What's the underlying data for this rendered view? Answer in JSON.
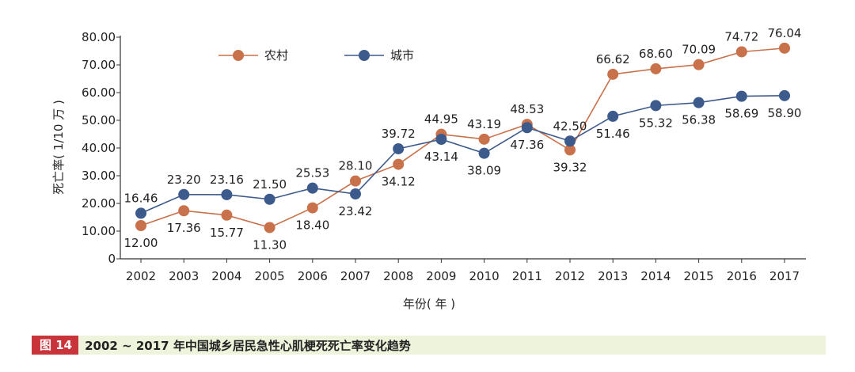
{
  "chart_data": {
    "type": "line",
    "categories": [
      "2002",
      "2003",
      "2004",
      "2005",
      "2006",
      "2007",
      "2008",
      "2009",
      "2010",
      "2011",
      "2012",
      "2013",
      "2014",
      "2015",
      "2016",
      "2017"
    ],
    "series": [
      {
        "name": "农村",
        "color": "#c8714a",
        "values": [
          12.0,
          17.36,
          15.77,
          11.3,
          18.4,
          28.1,
          34.12,
          44.95,
          43.19,
          48.53,
          39.32,
          66.62,
          68.6,
          70.09,
          74.72,
          76.04
        ],
        "labels": [
          "12.00",
          "17.36",
          "15.77",
          "11.30",
          "18.40",
          "28.10",
          "34.12",
          "44.95",
          "43.19",
          "48.53",
          "39.32",
          "66.62",
          "68.60",
          "70.09",
          "74.72",
          "76.04"
        ]
      },
      {
        "name": "城市",
        "color": "#3d5a8c",
        "values": [
          16.46,
          23.2,
          23.16,
          21.5,
          25.53,
          23.42,
          39.72,
          43.14,
          38.09,
          47.36,
          42.5,
          51.46,
          55.32,
          56.38,
          58.69,
          58.9
        ],
        "labels": [
          "16.46",
          "23.20",
          "23.16",
          "21.50",
          "25.53",
          "23.42",
          "39.72",
          "43.14",
          "38.09",
          "47.36",
          "42.50",
          "51.46",
          "55.32",
          "56.38",
          "58.69",
          "58.90"
        ]
      }
    ],
    "yticks": [
      "0",
      "10.00",
      "20.00",
      "30.00",
      "40.00",
      "50.00",
      "60.00",
      "70.00",
      "80.00"
    ],
    "ylim": [
      0,
      80
    ],
    "xlabel": "年份( 年 )",
    "ylabel": "死亡率( 1/10 万 )",
    "grid": false,
    "legend": "top-left"
  },
  "caption": {
    "tag": "图 14",
    "text": "2002 ~ 2017 年中国城乡居民急性心肌梗死死亡率变化趋势"
  }
}
